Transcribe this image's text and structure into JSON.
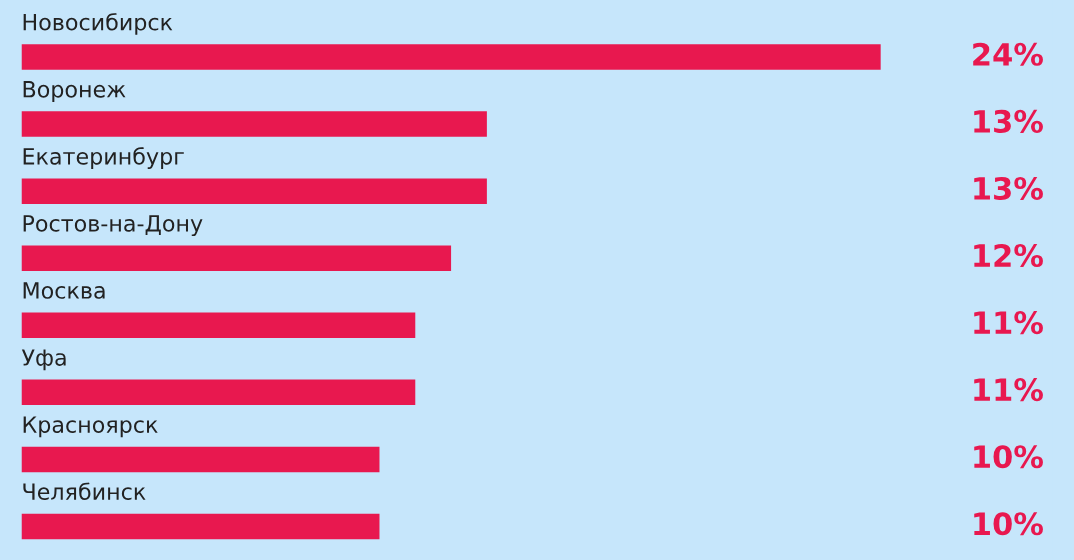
{
  "chart_data": {
    "type": "bar",
    "orientation": "horizontal",
    "categories": [
      "Новосибирск",
      "Воронеж",
      "Екатеринбург",
      "Ростов-на-Дону",
      "Москва",
      "Уфа",
      "Красноярск",
      "Челябинск"
    ],
    "values": [
      24,
      13,
      13,
      12,
      11,
      11,
      10,
      10
    ],
    "value_labels": [
      "24%",
      "13%",
      "13%",
      "12%",
      "11%",
      "11%",
      "10%",
      "10%"
    ],
    "color": "#e8184f"
  }
}
